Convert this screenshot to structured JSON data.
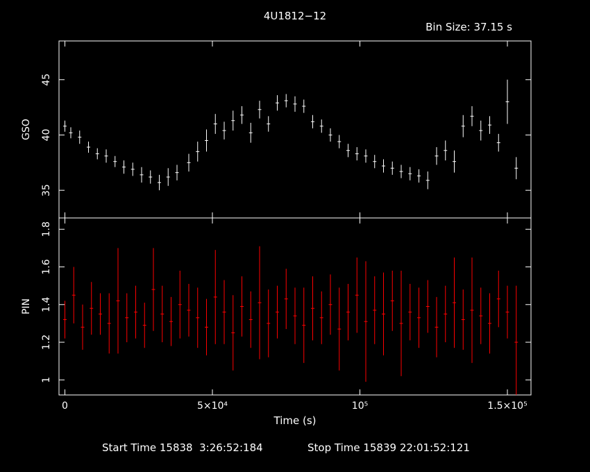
{
  "title": "4U1812−12",
  "bin_size_text": "Bin Size: 37.15 s",
  "start_time_text": "Start Time 15838  3:26:52:184",
  "stop_time_text": "Stop Time 15839 22:01:52:121",
  "colors": {
    "background": "#000000",
    "axes": "#ffffff",
    "gso": "#ffffff",
    "pin": "#ff0000"
  },
  "chart_data": [
    {
      "type": "scatter",
      "name": "GSO",
      "ylabel": "GSO",
      "xlabel": "Time (s)",
      "xlim": [
        -2000,
        158000
      ],
      "ylim": [
        32.5,
        48.5
      ],
      "yticks": [
        35,
        40,
        45
      ],
      "ytick_labels": [
        "35",
        "40",
        "45"
      ],
      "xticks": [
        0,
        50000,
        100000,
        150000
      ],
      "xtick_labels": [
        "0",
        "5×10⁴",
        "10⁵",
        "1.5×10⁵"
      ],
      "series": [
        {
          "color": "#ffffff",
          "x": [
            0,
            2000,
            5000,
            8000,
            11000,
            14000,
            17000,
            20000,
            23000,
            26000,
            29000,
            32000,
            35000,
            38000,
            42000,
            45000,
            48000,
            51000,
            54000,
            57000,
            60000,
            63000,
            66000,
            69000,
            72000,
            75000,
            78000,
            81000,
            84000,
            87000,
            90000,
            93000,
            96000,
            99000,
            102000,
            105000,
            108000,
            111000,
            114000,
            117000,
            120000,
            123000,
            126000,
            129000,
            132000,
            135000,
            138000,
            141000,
            144000,
            147000,
            150000,
            153000
          ],
          "y": [
            40.8,
            40.2,
            39.8,
            38.9,
            38.3,
            38.1,
            37.6,
            37.1,
            36.9,
            36.4,
            36.2,
            35.7,
            36.2,
            36.6,
            37.5,
            38.5,
            39.5,
            41.0,
            40.4,
            41.3,
            41.8,
            40.2,
            42.3,
            41.0,
            42.9,
            43.1,
            42.8,
            42.6,
            41.2,
            40.8,
            40.0,
            39.4,
            38.6,
            38.3,
            38.1,
            37.6,
            37.2,
            37.0,
            36.7,
            36.5,
            36.3,
            35.9,
            38.1,
            38.6,
            37.6,
            40.8,
            41.7,
            40.4,
            40.9,
            39.3,
            43.0,
            37.0
          ],
          "err": [
            0.5,
            0.5,
            0.6,
            0.5,
            0.5,
            0.6,
            0.5,
            0.6,
            0.6,
            0.7,
            0.6,
            0.7,
            0.8,
            0.7,
            0.8,
            0.9,
            1.0,
            0.9,
            0.8,
            0.9,
            0.8,
            0.9,
            0.8,
            0.7,
            0.7,
            0.6,
            0.7,
            0.6,
            0.6,
            0.6,
            0.6,
            0.6,
            0.6,
            0.6,
            0.6,
            0.6,
            0.6,
            0.6,
            0.6,
            0.6,
            0.6,
            0.8,
            0.8,
            0.9,
            1.0,
            1.0,
            0.9,
            0.9,
            0.8,
            0.8,
            2.0,
            1.0
          ]
        }
      ]
    },
    {
      "type": "scatter",
      "name": "PIN",
      "ylabel": "PIN",
      "xlabel": "Time (s)",
      "xlim": [
        -2000,
        158000
      ],
      "ylim": [
        0.92,
        1.86
      ],
      "yticks": [
        1.0,
        1.2,
        1.4,
        1.6,
        1.8
      ],
      "ytick_labels": [
        "1",
        "1.2",
        "1.4",
        "1.6",
        "1.8"
      ],
      "xticks": [
        0,
        50000,
        100000,
        150000
      ],
      "xtick_labels": [
        "0",
        "5×10⁴",
        "10⁵",
        "1.5×10⁵"
      ],
      "series": [
        {
          "color": "#ff0000",
          "x": [
            0,
            3000,
            6000,
            9000,
            12000,
            15000,
            18000,
            21000,
            24000,
            27000,
            30000,
            33000,
            36000,
            39000,
            42000,
            45000,
            48000,
            51000,
            54000,
            57000,
            60000,
            63000,
            66000,
            69000,
            72000,
            75000,
            78000,
            81000,
            84000,
            87000,
            90000,
            93000,
            96000,
            99000,
            102000,
            105000,
            108000,
            111000,
            114000,
            117000,
            120000,
            123000,
            126000,
            129000,
            132000,
            135000,
            138000,
            141000,
            144000,
            147000,
            150000,
            153000
          ],
          "y": [
            1.32,
            1.45,
            1.28,
            1.38,
            1.35,
            1.3,
            1.42,
            1.33,
            1.36,
            1.29,
            1.48,
            1.35,
            1.31,
            1.4,
            1.37,
            1.33,
            1.28,
            1.44,
            1.36,
            1.25,
            1.39,
            1.32,
            1.41,
            1.3,
            1.36,
            1.43,
            1.34,
            1.29,
            1.38,
            1.33,
            1.4,
            1.27,
            1.36,
            1.45,
            1.31,
            1.37,
            1.35,
            1.42,
            1.3,
            1.36,
            1.33,
            1.39,
            1.28,
            1.35,
            1.41,
            1.32,
            1.37,
            1.34,
            1.3,
            1.43,
            1.36,
            1.2
          ],
          "err": [
            0.1,
            0.15,
            0.12,
            0.14,
            0.11,
            0.16,
            0.28,
            0.13,
            0.14,
            0.12,
            0.22,
            0.15,
            0.13,
            0.18,
            0.14,
            0.16,
            0.15,
            0.25,
            0.17,
            0.2,
            0.16,
            0.15,
            0.3,
            0.18,
            0.14,
            0.16,
            0.15,
            0.2,
            0.17,
            0.14,
            0.16,
            0.22,
            0.15,
            0.2,
            0.32,
            0.18,
            0.22,
            0.16,
            0.28,
            0.15,
            0.16,
            0.14,
            0.16,
            0.15,
            0.24,
            0.16,
            0.28,
            0.15,
            0.16,
            0.15,
            0.14,
            0.3
          ]
        }
      ]
    }
  ]
}
